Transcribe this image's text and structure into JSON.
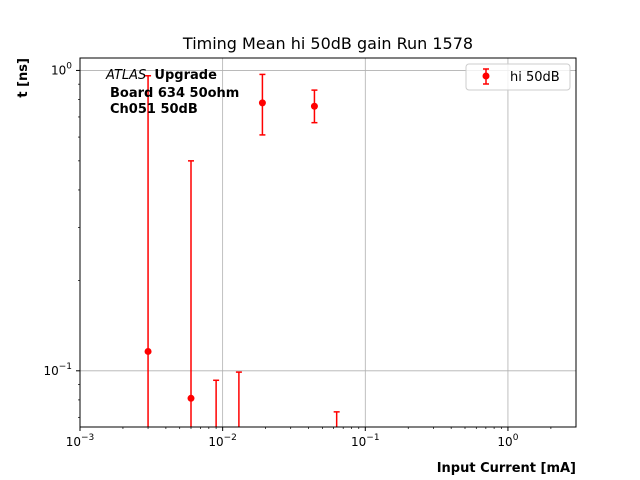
{
  "chart_data": {
    "type": "scatter",
    "title": "Timing Mean hi 50dB gain Run 1578",
    "xlabel": "Input Current [mA]",
    "ylabel": "t [ns]",
    "xscale": "log",
    "yscale": "log",
    "xlim": [
      0.001,
      3.0
    ],
    "ylim": [
      0.065,
      1.1
    ],
    "grid": true,
    "x_ticks": [
      {
        "value": 0.001,
        "base": "10",
        "exp": "−3"
      },
      {
        "value": 0.01,
        "base": "10",
        "exp": "−2"
      },
      {
        "value": 0.1,
        "base": "10",
        "exp": "−1"
      },
      {
        "value": 1,
        "base": "10",
        "exp": "0"
      }
    ],
    "y_ticks": [
      {
        "value": 0.1,
        "base": "10",
        "exp": "−1"
      },
      {
        "value": 1,
        "base": "10",
        "exp": "0"
      }
    ],
    "annotation": {
      "atlas": "ATLAS",
      "upgrade": "Upgrade",
      "line2": "Board 634 50ohm",
      "line3": "Ch051 50dB"
    },
    "legend": {
      "placement": "top-right"
    },
    "series": [
      {
        "name": "hi 50dB",
        "color": "#ff0000",
        "points": [
          {
            "x": 0.003,
            "y": 0.116,
            "ylo": 0.01,
            "yhi": 0.96
          },
          {
            "x": 0.006,
            "y": 0.081,
            "ylo": 0.01,
            "yhi": 0.5
          },
          {
            "x": 0.009,
            "y": null,
            "ylo": 0.01,
            "yhi": 0.093
          },
          {
            "x": 0.013,
            "y": null,
            "ylo": 0.01,
            "yhi": 0.099
          },
          {
            "x": 0.019,
            "y": 0.78,
            "ylo": 0.61,
            "yhi": 0.97
          },
          {
            "x": 0.044,
            "y": 0.76,
            "ylo": 0.67,
            "yhi": 0.86
          },
          {
            "x": 0.063,
            "y": null,
            "ylo": 0.01,
            "yhi": 0.073
          }
        ]
      }
    ]
  }
}
